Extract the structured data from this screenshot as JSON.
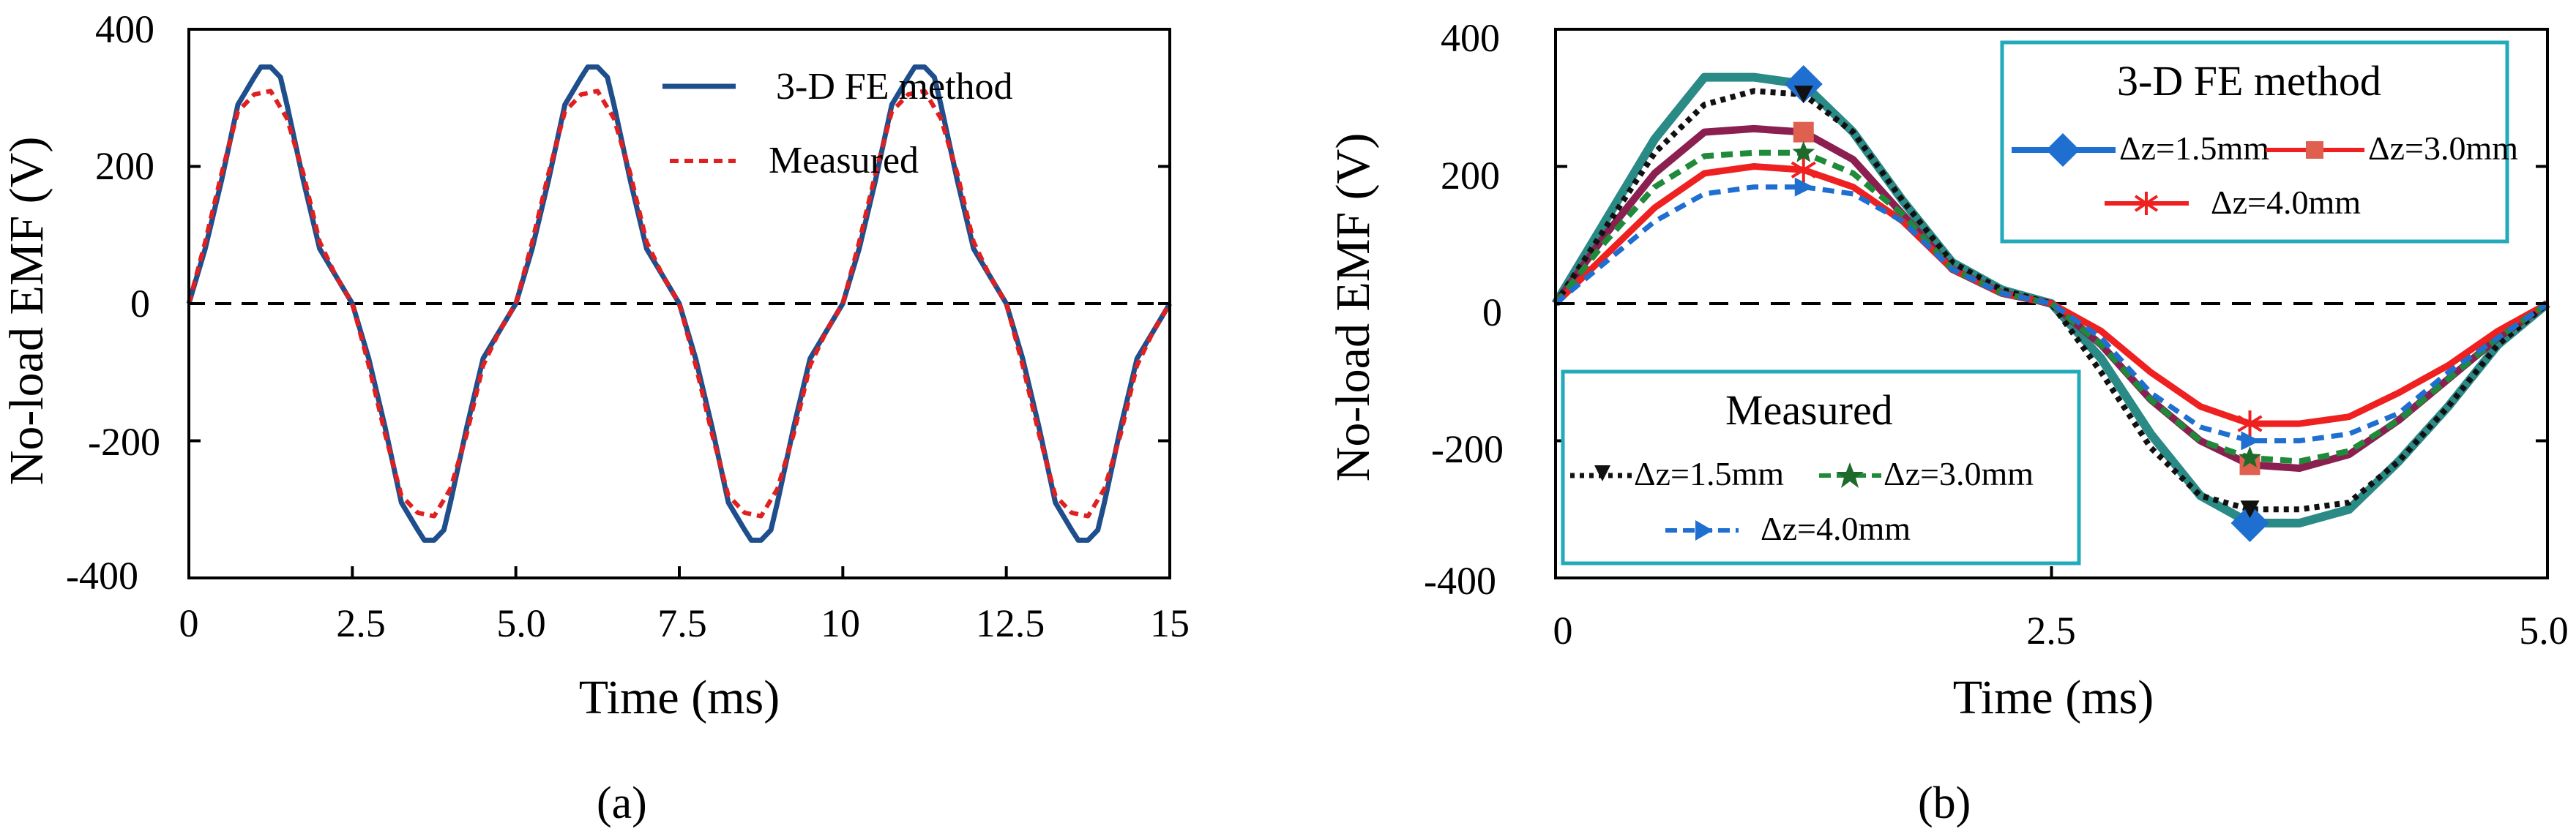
{
  "figure": {
    "panel_a_label": "(a)",
    "panel_b_label": "(b)"
  },
  "chart_data": [
    {
      "id": "a",
      "type": "line",
      "title": "",
      "xlabel": "Time (ms)",
      "ylabel": "No-load EMF (V)",
      "xlim": [
        0,
        15
      ],
      "ylim": [
        -400,
        400
      ],
      "xticks": [
        0,
        2.5,
        5.0,
        7.5,
        10,
        12.5,
        15
      ],
      "xtick_labels": [
        "0",
        "2.5",
        "5.0",
        "7.5",
        "10",
        "12.5",
        "15"
      ],
      "yticks": [
        400,
        200,
        0,
        -200,
        -400
      ],
      "ytick_labels": [
        "400",
        "200",
        "0",
        "-200",
        "-400"
      ],
      "period_ms": 5,
      "legend": [
        "3-D FE  method",
        "Measured"
      ],
      "series": [
        {
          "name": "3-D FE  method",
          "style": "solid",
          "color": "#1f4e8c",
          "amplitude": 345,
          "x": [
            0,
            0.25,
            0.5,
            0.75,
            1.0,
            1.1,
            1.25,
            1.4,
            1.5,
            1.75,
            2.0,
            2.25,
            2.5,
            2.75,
            3.0,
            3.25,
            3.5,
            3.6,
            3.75,
            3.9,
            4.0,
            4.25,
            4.5,
            4.75,
            5.0
          ],
          "y": [
            0,
            80,
            180,
            290,
            330,
            345,
            345,
            330,
            290,
            180,
            80,
            40,
            0,
            -80,
            -180,
            -290,
            -330,
            -345,
            -345,
            -330,
            -290,
            -180,
            -80,
            -40,
            0
          ]
        },
        {
          "name": "Measured",
          "style": "dashed",
          "color": "#e02020",
          "amplitude": 310,
          "x": [
            0,
            0.25,
            0.5,
            0.75,
            1.0,
            1.25,
            1.5,
            1.75,
            2.0,
            2.25,
            2.5,
            2.75,
            3.0,
            3.25,
            3.5,
            3.75,
            4.0,
            4.25,
            4.5,
            4.75,
            5.0
          ],
          "y": [
            0,
            90,
            190,
            280,
            305,
            310,
            270,
            190,
            90,
            40,
            0,
            -90,
            -190,
            -280,
            -305,
            -310,
            -270,
            -190,
            -90,
            -40,
            0
          ]
        }
      ],
      "reference_line": {
        "y": 0,
        "style": "dashed"
      }
    },
    {
      "id": "b",
      "type": "line",
      "title": "",
      "xlabel": "Time (ms)",
      "ylabel": "No-load EMF (V)",
      "xlim": [
        0,
        5.0
      ],
      "ylim": [
        -400,
        400
      ],
      "xticks": [
        0,
        2.5,
        5.0
      ],
      "xtick_labels": [
        "0",
        "2.5",
        "5.0"
      ],
      "yticks": [
        400,
        200,
        0,
        -200,
        -400
      ],
      "ytick_labels": [
        "400",
        "200",
        "0",
        "-200",
        "-400"
      ],
      "legend_fe_title": "3-D FE  method",
      "legend_measured_title": "Measured",
      "x": [
        0,
        0.25,
        0.5,
        0.75,
        1.0,
        1.25,
        1.5,
        1.75,
        2.0,
        2.25,
        2.5,
        2.75,
        3.0,
        3.25,
        3.5,
        3.75,
        4.0,
        4.25,
        4.5,
        4.75,
        5.0
      ],
      "series": [
        {
          "name": "Δz=1.5mm",
          "group": "3-D FE  method",
          "style": "solid",
          "color": "#2a8a86",
          "marker": "diamond",
          "marker_color": "#1f6fd0",
          "y": [
            0,
            120,
            240,
            330,
            330,
            320,
            250,
            150,
            60,
            20,
            0,
            -80,
            -190,
            -280,
            -320,
            -320,
            -300,
            -230,
            -150,
            -60,
            0
          ]
        },
        {
          "name": "Δz=3.0mm",
          "group": "3-D FE  method",
          "style": "solid",
          "color": "#8a1f50",
          "marker": "square",
          "marker_color": "#e06050",
          "y": [
            0,
            100,
            190,
            250,
            255,
            250,
            210,
            130,
            50,
            15,
            0,
            -60,
            -140,
            -200,
            -235,
            -240,
            -220,
            -170,
            -110,
            -50,
            0
          ]
        },
        {
          "name": "Δz=4.0mm",
          "group": "3-D FE  method",
          "style": "solid",
          "color": "#ee2020",
          "marker": "asterisk",
          "marker_color": "#ee2020",
          "y": [
            0,
            70,
            140,
            190,
            200,
            195,
            170,
            120,
            50,
            15,
            0,
            -40,
            -100,
            -150,
            -175,
            -175,
            -165,
            -130,
            -90,
            -40,
            0
          ]
        },
        {
          "name": "Δz=1.5mm",
          "group": "Measured",
          "style": "dotted",
          "color": "#111111",
          "marker": "triangle-down",
          "marker_color": "#111111",
          "y": [
            0,
            110,
            220,
            290,
            310,
            305,
            250,
            150,
            60,
            20,
            0,
            -100,
            -210,
            -280,
            -300,
            -300,
            -290,
            -230,
            -150,
            -60,
            0
          ]
        },
        {
          "name": "Δz=3.0mm",
          "group": "Measured",
          "style": "dashed",
          "color": "#1e8a3a",
          "marker": "star",
          "marker_color": "#1e6a2a",
          "y": [
            0,
            90,
            170,
            215,
            220,
            220,
            190,
            130,
            50,
            15,
            0,
            -60,
            -140,
            -200,
            -225,
            -230,
            -215,
            -170,
            -110,
            -50,
            0
          ]
        },
        {
          "name": "Δz=4.0mm",
          "group": "Measured",
          "style": "dashed",
          "color": "#1f6fd0",
          "marker": "triangle-right",
          "marker_color": "#1f6fd0",
          "y": [
            0,
            60,
            120,
            160,
            170,
            170,
            160,
            120,
            50,
            15,
            0,
            -50,
            -130,
            -180,
            -200,
            -200,
            -190,
            -160,
            -100,
            -50,
            0
          ]
        }
      ],
      "reference_line": {
        "y": 0,
        "style": "dashed"
      }
    }
  ]
}
